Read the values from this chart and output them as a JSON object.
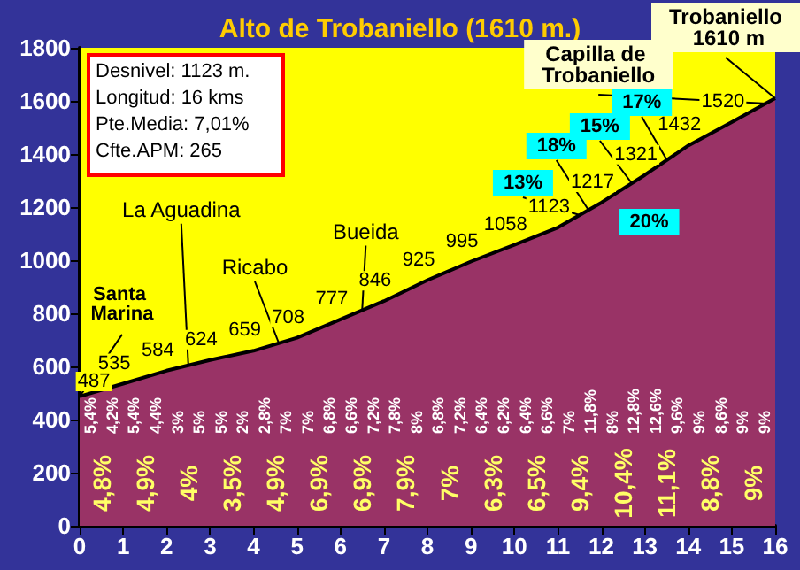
{
  "chart_data": {
    "type": "area",
    "title": "Alto de Trobaniello (1610 m.)",
    "x": [
      0,
      1,
      2,
      3,
      4,
      5,
      6,
      7,
      8,
      9,
      10,
      11,
      12,
      13,
      14,
      15,
      16
    ],
    "series": [
      {
        "color": "#993366",
        "values": [
          487,
          535,
          584,
          624,
          659,
          708,
          777,
          846,
          925,
          995,
          1058,
          1123,
          1217,
          1321,
          1432,
          1520,
          1610
        ]
      }
    ],
    "value_labels": [
      "487",
      "535",
      "584",
      "624",
      "659",
      "708",
      "777",
      "846",
      "925",
      "995",
      "1058",
      "1123",
      "1217",
      "1321",
      "1432",
      "1520",
      null
    ],
    "xlim": [
      0,
      16
    ],
    "xticks": [
      0,
      1,
      2,
      3,
      4,
      5,
      6,
      7,
      8,
      9,
      10,
      11,
      12,
      13,
      14,
      15,
      16
    ],
    "ylim": [
      0,
      1800
    ],
    "yticks": [
      0,
      200,
      400,
      600,
      800,
      1000,
      1200,
      1400,
      1600,
      1800
    ],
    "grid": false,
    "annotations": [
      "Desnivel: 1123 m.",
      "Longitud: 16 kms",
      "Pte.Media: 7,01%",
      "Cfte.APM: 265",
      "5,4%",
      "4,2%",
      "5,4%",
      "4,4%",
      "3%",
      "5%",
      "5%",
      "2%",
      "2,8%",
      "7%",
      "7%",
      "6,8%",
      "6,6%",
      "7,2%",
      "7,8%",
      "8%",
      "6,8%",
      "7,2%",
      "6,4%",
      "6,2%",
      "6,4%",
      "6,6%",
      "7%",
      "11,8%",
      "8%",
      "12,8%",
      "12,6%",
      "9,6%",
      "9%",
      "8,6%",
      "9%",
      "9%",
      "4,8%",
      "4,9%",
      "4%",
      "3,5%",
      "4,9%",
      "6,9%",
      "6,9%",
      "7,9%",
      "7%",
      "6,3%",
      "6,5%",
      "9,4%",
      "10,4%",
      "11,1%",
      "8,8%",
      "9%",
      {
        "text": "Santa Marina",
        "x": 0,
        "y": 487
      },
      {
        "text": "La Aguadina",
        "x": 2.5,
        "y": 604
      },
      {
        "text": "Ricabo",
        "x": 4.6,
        "y": 680
      },
      {
        "text": "Bueida",
        "x": 6.5,
        "y": 815
      },
      {
        "text": "Capilla de Trobaniello",
        "x": 15.8,
        "y": 1590
      },
      {
        "text": "Trobaniello 1610 m",
        "x": 16,
        "y": 1610
      },
      {
        "text": "13%",
        "x": 11.5,
        "y": 1170
      },
      {
        "text": "18%",
        "x": 11.7,
        "y": 1190
      },
      {
        "text": "15%",
        "x": 12.7,
        "y": 1290
      },
      {
        "text": "17%",
        "x": 13.5,
        "y": 1380
      },
      {
        "text": "20%",
        "x": 13.1,
        "y": 1330
      }
    ]
  }
}
